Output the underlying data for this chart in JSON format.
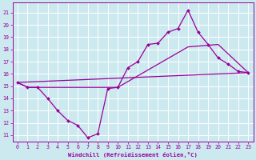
{
  "title": "",
  "xlabel": "Windchill (Refroidissement éolien,°C)",
  "bg_color": "#cce9f0",
  "line_color": "#990099",
  "grid_color": "#ffffff",
  "xlim": [
    -0.5,
    23.5
  ],
  "ylim": [
    10.5,
    21.8
  ],
  "yticks": [
    11,
    12,
    13,
    14,
    15,
    16,
    17,
    18,
    19,
    20,
    21
  ],
  "xticks": [
    0,
    1,
    2,
    3,
    4,
    5,
    6,
    7,
    8,
    9,
    10,
    11,
    12,
    13,
    14,
    15,
    16,
    17,
    18,
    19,
    20,
    21,
    22,
    23
  ],
  "line1_x": [
    0,
    1,
    2,
    3,
    4,
    5,
    6,
    7,
    8,
    9,
    10,
    11,
    12,
    13,
    14,
    15,
    16,
    17,
    18,
    19,
    20,
    21,
    22,
    23
  ],
  "line1_y": [
    15.3,
    14.9,
    14.9,
    14.0,
    13.0,
    12.2,
    11.8,
    10.8,
    11.1,
    14.8,
    14.9,
    16.5,
    17.0,
    18.4,
    18.5,
    19.4,
    19.7,
    21.2,
    19.4,
    18.4,
    17.3,
    16.8,
    16.2,
    16.1
  ],
  "line2_x": [
    0,
    23
  ],
  "line2_y": [
    15.3,
    16.1
  ],
  "line3_x": [
    0,
    1,
    2,
    10,
    17,
    20,
    23
  ],
  "line3_y": [
    15.3,
    14.9,
    14.9,
    14.9,
    18.2,
    18.4,
    16.1
  ]
}
